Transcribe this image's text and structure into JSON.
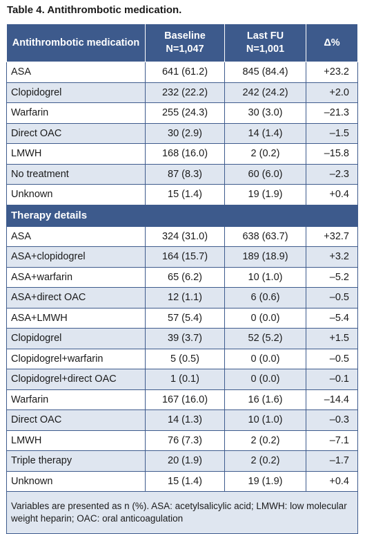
{
  "title": "Table 4. Antithrombotic medication.",
  "header": {
    "col1": "Antithrombotic medication",
    "col2_line1": "Baseline",
    "col2_line2": "N=1,047",
    "col3_line1": "Last FU",
    "col3_line2": "N=1,001",
    "col4": "Δ%"
  },
  "rows_a": [
    {
      "label": "ASA",
      "baseline": "641 (61.2)",
      "last": "845 (84.4)",
      "delta": "+23.2"
    },
    {
      "label": "Clopidogrel",
      "baseline": "232 (22.2)",
      "last": "242 (24.2)",
      "delta": "+2.0"
    },
    {
      "label": "Warfarin",
      "baseline": "255 (24.3)",
      "last": "30 (3.0)",
      "delta": "–21.3"
    },
    {
      "label": "Direct OAC",
      "baseline": "30 (2.9)",
      "last": "14 (1.4)",
      "delta": "–1.5"
    },
    {
      "label": "LMWH",
      "baseline": "168 (16.0)",
      "last": "2 (0.2)",
      "delta": "–15.8"
    },
    {
      "label": "No treatment",
      "baseline": "87 (8.3)",
      "last": "60 (6.0)",
      "delta": "–2.3"
    },
    {
      "label": "Unknown",
      "baseline": "15 (1.4)",
      "last": "19 (1.9)",
      "delta": "+0.4"
    }
  ],
  "section_title": "Therapy details",
  "rows_b": [
    {
      "label": "ASA",
      "baseline": "324 (31.0)",
      "last": "638 (63.7)",
      "delta": "+32.7"
    },
    {
      "label": "ASA+clopidogrel",
      "baseline": "164 (15.7)",
      "last": "189 (18.9)",
      "delta": "+3.2"
    },
    {
      "label": "ASA+warfarin",
      "baseline": "65 (6.2)",
      "last": "10 (1.0)",
      "delta": "–5.2"
    },
    {
      "label": "ASA+direct OAC",
      "baseline": "12 (1.1)",
      "last": "6 (0.6)",
      "delta": "–0.5"
    },
    {
      "label": "ASA+LMWH",
      "baseline": "57 (5.4)",
      "last": "0 (0.0)",
      "delta": "–5.4"
    },
    {
      "label": "Clopidogrel",
      "baseline": "39 (3.7)",
      "last": "52 (5.2)",
      "delta": "+1.5"
    },
    {
      "label": "Clopidogrel+warfarin",
      "baseline": "5 (0.5)",
      "last": "0 (0.0)",
      "delta": "–0.5"
    },
    {
      "label": "Clopidogrel+direct OAC",
      "baseline": "1 (0.1)",
      "last": "0 (0.0)",
      "delta": "–0.1"
    },
    {
      "label": "Warfarin",
      "baseline": "167 (16.0)",
      "last": "16 (1.6)",
      "delta": "–14.4"
    },
    {
      "label": "Direct OAC",
      "baseline": "14 (1.3)",
      "last": "10 (1.0)",
      "delta": "–0.3"
    },
    {
      "label": "LMWH",
      "baseline": "76 (7.3)",
      "last": "2 (0.2)",
      "delta": "–7.1"
    },
    {
      "label": "Triple therapy",
      "baseline": "20 (1.9)",
      "last": "2 (0.2)",
      "delta": "–1.7"
    },
    {
      "label": "Unknown",
      "baseline": "15 (1.4)",
      "last": "19 (1.9)",
      "delta": "+0.4"
    }
  ],
  "footnote": "Variables are presented as n (%). ASA: acetylsalicylic acid; LMWH: low molecular weight heparin; OAC: oral anticoagulation",
  "colors": {
    "header_bg": "#3d5a8c",
    "stripe_bg": "#dfe6f0"
  }
}
